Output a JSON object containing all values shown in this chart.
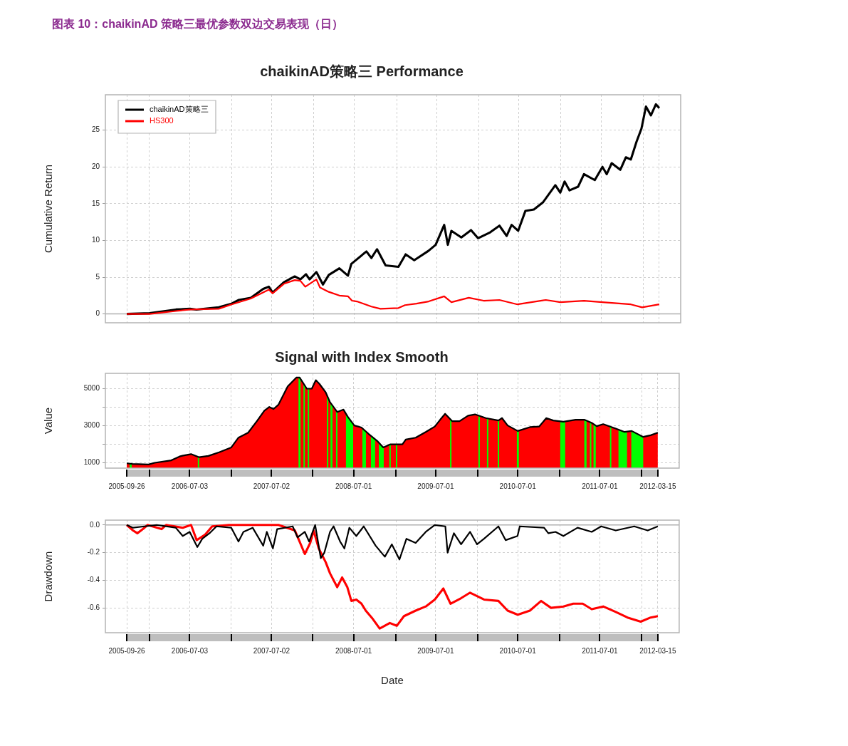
{
  "chart_data": [
    {
      "type": "line",
      "title": "chaikinAD策略三 Performance",
      "ylabel": "Cumulative Return",
      "annotations": [
        "图表 10：chaikinAD 策略三最优参数双边交易表现（日）"
      ],
      "series": [
        {
          "name": "chaikinAD策略三",
          "color": "#000000",
          "x": [
            "2005-09-26",
            "2006-01-05",
            "2006-05-02",
            "2006-07-03",
            "2006-08-01",
            "2006-11-08",
            "2007-01-04",
            "2007-02-05",
            "2007-03-30",
            "2007-05-24",
            "2007-06-18",
            "2007-07-05",
            "2007-08-24",
            "2007-10-11",
            "2007-11-05",
            "2007-11-30",
            "2007-12-16",
            "2008-01-15",
            "2008-02-13",
            "2008-03-10",
            "2008-04-26",
            "2008-06-03",
            "2008-06-18",
            "2008-08-24",
            "2008-09-15",
            "2008-10-10",
            "2008-11-17",
            "2009-01-13",
            "2009-02-14",
            "2009-03-24",
            "2009-05-27",
            "2009-06-27",
            "2009-08-04",
            "2009-08-20",
            "2009-09-05",
            "2009-10-19",
            "2009-12-01",
            "2010-01-01",
            "2010-02-24",
            "2010-04-06",
            "2010-05-08",
            "2010-05-30",
            "2010-06-28",
            "2010-07-30",
            "2010-09-06",
            "2010-10-17",
            "2010-12-10",
            "2011-01-01",
            "2011-01-20",
            "2011-02-11",
            "2011-03-21",
            "2011-04-16",
            "2011-06-03",
            "2011-07-07",
            "2011-07-26",
            "2011-08-17",
            "2011-09-24",
            "2011-10-19",
            "2011-11-10",
            "2011-12-05",
            "2011-12-27",
            "2012-01-16",
            "2012-02-07",
            "2012-02-29",
            "2012-03-15"
          ],
          "values": [
            0,
            0.1,
            0.6,
            0.7,
            0.6,
            0.9,
            1.4,
            1.9,
            2.2,
            3.4,
            3.7,
            2.9,
            4.3,
            5.1,
            4.7,
            5.4,
            4.7,
            5.7,
            4.0,
            5.3,
            6.2,
            5.2,
            6.8,
            8.5,
            7.6,
            8.8,
            6.6,
            6.4,
            8.1,
            7.3,
            8.6,
            9.4,
            12.1,
            9.4,
            11.3,
            10.4,
            11.4,
            10.3,
            11.1,
            12.0,
            10.6,
            12.1,
            11.3,
            14.0,
            14.2,
            15.2,
            17.5,
            16.5,
            18.0,
            16.8,
            17.3,
            19.0,
            18.2,
            20.0,
            19.0,
            20.5,
            19.6,
            21.3,
            21.0,
            23.4,
            25.2,
            28.2,
            27.0,
            28.5,
            28.0
          ]
        },
        {
          "name": "HS300",
          "color": "#ff0000",
          "x": [
            "2005-09-26",
            "2006-01-05",
            "2006-05-02",
            "2006-07-03",
            "2006-11-08",
            "2007-01-04",
            "2007-03-30",
            "2007-06-18",
            "2007-07-05",
            "2007-08-24",
            "2007-10-11",
            "2007-11-05",
            "2007-11-27",
            "2008-01-15",
            "2008-01-31",
            "2008-03-10",
            "2008-04-26",
            "2008-06-03",
            "2008-06-21",
            "2008-07-13",
            "2008-09-15",
            "2008-10-25",
            "2009-01-13",
            "2009-02-11",
            "2009-04-03",
            "2009-05-27",
            "2009-08-04",
            "2009-09-05",
            "2009-11-21",
            "2010-01-26",
            "2010-04-06",
            "2010-06-25",
            "2010-10-29",
            "2011-01-01",
            "2011-04-16",
            "2011-07-07",
            "2011-11-10",
            "2011-12-30",
            "2012-03-15"
          ],
          "values": [
            0,
            0.0,
            0.4,
            0.6,
            0.7,
            1.3,
            2.1,
            3.3,
            2.8,
            4.1,
            4.6,
            4.5,
            3.7,
            4.7,
            3.6,
            3.0,
            2.5,
            2.4,
            1.8,
            1.7,
            1.0,
            0.7,
            0.8,
            1.2,
            1.4,
            1.7,
            2.4,
            1.6,
            2.2,
            1.8,
            1.9,
            1.3,
            1.9,
            1.6,
            1.8,
            1.6,
            1.3,
            0.9,
            1.3
          ]
        }
      ],
      "xlim": [
        "2005-06-23",
        "2012-06-18"
      ],
      "xticks": [
        {
          "value": "2005-09-26",
          "label": null
        },
        {
          "value": "2006-01-04",
          "label": null
        },
        {
          "value": "2006-07-03",
          "label": null
        },
        {
          "value": "2007-01-04",
          "label": null
        },
        {
          "value": "2007-07-02",
          "label": null
        },
        {
          "value": "2008-01-02",
          "label": null
        },
        {
          "value": "2008-07-01",
          "label": null
        },
        {
          "value": "2009-01-05",
          "label": null
        },
        {
          "value": "2009-07-01",
          "label": null
        },
        {
          "value": "2010-01-04",
          "label": null
        },
        {
          "value": "2010-07-01",
          "label": null
        },
        {
          "value": "2011-01-04",
          "label": null
        },
        {
          "value": "2011-07-01",
          "label": null
        },
        {
          "value": "2012-01-04",
          "label": null
        },
        {
          "value": "2012-03-15",
          "label": null
        }
      ],
      "ylim": [
        -1.2,
        29.8
      ],
      "yticks": [
        0,
        5,
        10,
        15,
        20,
        25
      ],
      "ref_lines": [
        {
          "axis": "y",
          "value": 0,
          "color": "#b0b0b0"
        }
      ],
      "grid": true,
      "legend": "top left",
      "tick_labels": "y"
    },
    {
      "type": "line",
      "title": "Signal with Index Smooth",
      "ylabel": "Value",
      "x": [
        "2005-09-26",
        "2005-10-21",
        "2006-01-01",
        "2006-01-28",
        "2006-04-12",
        "2006-05-19",
        "2006-06-04",
        "2006-07-09",
        "2006-08-14",
        "2006-09-24",
        "2006-11-11",
        "2007-01-04",
        "2007-02-05",
        "2007-03-20",
        "2007-04-30",
        "2007-05-31",
        "2007-06-22",
        "2007-07-11",
        "2007-08-02",
        "2007-09-12",
        "2007-10-20",
        "2007-11-04",
        "2007-12-06",
        "2007-12-28",
        "2008-01-15",
        "2008-01-31",
        "2008-02-28",
        "2008-03-18",
        "2008-04-19",
        "2008-05-17",
        "2008-06-05",
        "2008-07-04",
        "2008-08-05",
        "2008-09-06",
        "2008-10-16",
        "2008-11-10",
        "2008-12-12",
        "2009-02-03",
        "2009-02-18",
        "2009-04-03",
        "2009-05-18",
        "2009-06-27",
        "2009-07-21",
        "2009-08-12",
        "2009-09-13",
        "2009-10-15",
        "2009-11-22",
        "2009-12-23",
        "2010-02-09",
        "2010-04-06",
        "2010-04-22",
        "2010-05-17",
        "2010-07-01",
        "2010-08-24",
        "2010-10-04",
        "2010-11-05",
        "2010-12-06",
        "2011-01-20",
        "2011-03-15",
        "2011-04-23",
        "2011-05-26",
        "2011-06-17",
        "2011-07-16",
        "2011-09-10",
        "2011-10-19",
        "2011-11-20",
        "2012-01-10",
        "2012-02-12",
        "2012-03-15"
      ],
      "series": [
        {
          "color": "#000000",
          "values": [
            960,
            930,
            900,
            990,
            1120,
            1330,
            1380,
            1460,
            1290,
            1360,
            1560,
            1820,
            2350,
            2620,
            3280,
            3810,
            4010,
            3900,
            4140,
            5130,
            5600,
            5600,
            5000,
            5000,
            5460,
            5260,
            4800,
            4270,
            3740,
            3870,
            3480,
            3010,
            2900,
            2550,
            2150,
            1820,
            1990,
            1990,
            2250,
            2350,
            2660,
            2950,
            3320,
            3640,
            3240,
            3240,
            3540,
            3610,
            3410,
            3280,
            3410,
            3010,
            2710,
            2920,
            2950,
            3410,
            3280,
            3210,
            3320,
            3320,
            3150,
            2970,
            3080,
            2840,
            2660,
            2710,
            2390,
            2480,
            2620
          ]
        }
      ],
      "bands": [
        {
          "axis": "x",
          "from": "2005-09-26",
          "to": "2012-03-15",
          "color": "#ff0000"
        },
        {
          "axis": "x",
          "from": "2005-10-09",
          "to": "2005-10-18",
          "color": "#00ff00"
        },
        {
          "axis": "x",
          "from": "2006-08-08",
          "to": "2006-08-14",
          "color": "#00ff00"
        },
        {
          "axis": "x",
          "from": "2007-10-30",
          "to": "2007-11-08",
          "color": "#00ff00"
        },
        {
          "axis": "x",
          "from": "2007-11-21",
          "to": "2007-11-24",
          "color": "#00ff00"
        },
        {
          "axis": "x",
          "from": "2007-12-10",
          "to": "2007-12-13",
          "color": "#00ff00"
        },
        {
          "axis": "x",
          "from": "2008-03-04",
          "to": "2008-03-07",
          "color": "#00ff00"
        },
        {
          "axis": "x",
          "from": "2008-03-20",
          "to": "2008-03-29",
          "color": "#00ff00"
        },
        {
          "axis": "x",
          "from": "2008-04-14",
          "to": "2008-04-17",
          "color": "#00ff00"
        },
        {
          "axis": "x",
          "from": "2008-05-28",
          "to": "2008-06-29",
          "color": "#00ff00"
        },
        {
          "axis": "x",
          "from": "2008-08-09",
          "to": "2008-08-25",
          "color": "#00ff00"
        },
        {
          "axis": "x",
          "from": "2008-09-16",
          "to": "2008-10-05",
          "color": "#00ff00"
        },
        {
          "axis": "x",
          "from": "2008-10-21",
          "to": "2008-11-12",
          "color": "#00ff00"
        },
        {
          "axis": "x",
          "from": "2008-12-07",
          "to": "2008-12-10",
          "color": "#00ff00"
        },
        {
          "axis": "x",
          "from": "2009-01-05",
          "to": "2009-01-08",
          "color": "#00ff00"
        },
        {
          "axis": "x",
          "from": "2009-09-03",
          "to": "2009-09-06",
          "color": "#00ff00"
        },
        {
          "axis": "x",
          "from": "2010-01-07",
          "to": "2010-01-10",
          "color": "#00ff00"
        },
        {
          "axis": "x",
          "from": "2010-02-14",
          "to": "2010-02-17",
          "color": "#00ff00"
        },
        {
          "axis": "x",
          "from": "2010-04-03",
          "to": "2010-04-06",
          "color": "#00ff00"
        },
        {
          "axis": "x",
          "from": "2010-06-27",
          "to": "2010-07-06",
          "color": "#00ff00"
        },
        {
          "axis": "x",
          "from": "2011-01-06",
          "to": "2011-01-28",
          "color": "#00ff00"
        },
        {
          "axis": "x",
          "from": "2011-04-23",
          "to": "2011-05-03",
          "color": "#00ff00"
        },
        {
          "axis": "x",
          "from": "2011-05-18",
          "to": "2011-05-21",
          "color": "#00ff00"
        },
        {
          "axis": "x",
          "from": "2011-06-03",
          "to": "2011-06-13",
          "color": "#00ff00"
        },
        {
          "axis": "x",
          "from": "2011-08-15",
          "to": "2011-08-18",
          "color": "#00ff00"
        },
        {
          "axis": "x",
          "from": "2011-09-22",
          "to": "2011-10-30",
          "color": "#00ff00"
        },
        {
          "axis": "x",
          "from": "2011-11-18",
          "to": "2012-01-10",
          "color": "#00ff00"
        }
      ],
      "xlim": [
        "2005-06-23",
        "2012-06-18"
      ],
      "xticks": [
        "2005-09-26",
        {
          "value": "2006-01-04",
          "label": null
        },
        "2006-07-03",
        {
          "value": "2007-01-04",
          "label": null
        },
        "2007-07-02",
        {
          "value": "2008-01-02",
          "label": null
        },
        "2008-07-01",
        {
          "value": "2009-01-05",
          "label": null
        },
        "2009-07-01",
        {
          "value": "2010-01-04",
          "label": null
        },
        "2010-07-01",
        {
          "value": "2011-01-04",
          "label": null
        },
        "2011-07-01",
        {
          "value": "2012-01-04",
          "label": null
        },
        "2012-03-15"
      ],
      "ylim": [
        700,
        5830
      ],
      "yticks": [
        1000,
        {
          "value": 2000,
          "label": null
        },
        3000,
        {
          "value": 4000,
          "label": null
        },
        5000
      ],
      "grid": true
    },
    {
      "type": "line",
      "ylabel": "Drawdown",
      "xlabel": "Date",
      "series": [
        {
          "color": "#ff0000",
          "x": [
            "2005-09-26",
            "2005-10-24",
            "2005-11-12",
            "2005-12-14",
            "2005-12-28",
            "2006-02-28",
            "2006-03-20",
            "2006-06-02",
            "2006-07-09",
            "2006-08-03",
            "2006-09-10",
            "2006-10-11",
            "2006-12-24",
            "2007-07-02",
            "2007-08-02",
            "2007-10-14",
            "2007-11-27",
            "2007-12-21",
            "2008-01-05",
            "2008-01-28",
            "2008-02-28",
            "2008-03-18",
            "2008-04-19",
            "2008-05-11",
            "2008-06-03",
            "2008-06-21",
            "2008-07-13",
            "2008-08-05",
            "2008-08-24",
            "2008-09-24",
            "2008-10-25",
            "2008-12-09",
            "2009-01-09",
            "2009-02-10",
            "2009-04-03",
            "2009-05-18",
            "2009-06-27",
            "2009-08-04",
            "2009-09-05",
            "2009-10-22",
            "2009-12-01",
            "2010-02-01",
            "2010-04-06",
            "2010-05-17",
            "2010-07-01",
            "2010-08-24",
            "2010-10-13",
            "2010-11-26",
            "2011-01-20",
            "2011-03-05",
            "2011-04-16",
            "2011-05-26",
            "2011-07-16",
            "2011-09-10",
            "2011-11-01",
            "2011-12-30",
            "2012-02-12",
            "2012-03-15"
          ],
          "values": [
            0,
            -0.04,
            -0.06,
            -0.02,
            0,
            -0.03,
            0,
            -0.02,
            0,
            -0.11,
            -0.07,
            -0.01,
            0,
            0,
            0,
            -0.04,
            -0.21,
            -0.13,
            -0.04,
            -0.17,
            -0.27,
            -0.35,
            -0.45,
            -0.38,
            -0.45,
            -0.55,
            -0.54,
            -0.57,
            -0.62,
            -0.68,
            -0.75,
            -0.71,
            -0.73,
            -0.66,
            -0.62,
            -0.59,
            -0.54,
            -0.46,
            -0.57,
            -0.53,
            -0.49,
            -0.54,
            -0.55,
            -0.62,
            -0.65,
            -0.62,
            -0.55,
            -0.6,
            -0.59,
            -0.57,
            -0.57,
            -0.61,
            -0.59,
            -0.63,
            -0.67,
            -0.7,
            -0.67,
            -0.66
          ]
        },
        {
          "color": "#000000",
          "x": [
            "2005-09-26",
            "2005-10-24",
            "2005-12-14",
            "2006-02-06",
            "2006-05-02",
            "2006-06-02",
            "2006-07-03",
            "2006-08-06",
            "2006-08-28",
            "2006-09-29",
            "2006-10-30",
            "2007-01-04",
            "2007-02-05",
            "2007-02-27",
            "2007-04-09",
            "2007-05-26",
            "2007-06-11",
            "2007-07-08",
            "2007-07-27",
            "2007-10-04",
            "2007-10-26",
            "2007-11-27",
            "2007-12-16",
            "2008-01-12",
            "2008-02-06",
            "2008-02-22",
            "2008-03-18",
            "2008-04-03",
            "2008-05-02",
            "2008-05-21",
            "2008-06-12",
            "2008-07-13",
            "2008-08-15",
            "2008-10-07",
            "2008-11-17",
            "2008-12-18",
            "2009-01-21",
            "2009-02-21",
            "2009-04-03",
            "2009-05-18",
            "2009-06-27",
            "2009-08-13",
            "2009-08-23",
            "2009-09-20",
            "2009-10-22",
            "2009-12-01",
            "2010-01-01",
            "2010-02-01",
            "2010-04-06",
            "2010-05-08",
            "2010-06-30",
            "2010-07-10",
            "2010-10-26",
            "2010-11-14",
            "2010-12-16",
            "2011-01-20",
            "2011-03-24",
            "2011-05-26",
            "2011-07-07",
            "2011-09-10",
            "2011-12-01",
            "2012-01-30",
            "2012-03-15"
          ],
          "values": [
            0,
            -0.02,
            -0.01,
            0,
            -0.02,
            -0.08,
            -0.05,
            -0.16,
            -0.1,
            -0.06,
            -0.01,
            -0.02,
            -0.12,
            -0.05,
            -0.02,
            -0.15,
            -0.05,
            -0.17,
            -0.03,
            -0.01,
            -0.09,
            -0.05,
            -0.12,
            0,
            -0.24,
            -0.2,
            -0.05,
            -0.01,
            -0.12,
            -0.17,
            -0.02,
            -0.08,
            -0.01,
            -0.15,
            -0.23,
            -0.14,
            -0.25,
            -0.1,
            -0.13,
            -0.05,
            0,
            -0.01,
            -0.2,
            -0.06,
            -0.14,
            -0.05,
            -0.14,
            -0.1,
            -0.01,
            -0.11,
            -0.08,
            -0.01,
            -0.02,
            -0.06,
            -0.05,
            -0.08,
            -0.02,
            -0.05,
            -0.01,
            -0.04,
            -0.01,
            -0.04,
            -0.01
          ]
        }
      ],
      "xlim": [
        "2005-06-23",
        "2012-06-18"
      ],
      "xticks": [
        "2005-09-26",
        {
          "value": "2006-01-04",
          "label": null
        },
        "2006-07-03",
        {
          "value": "2007-01-04",
          "label": null
        },
        "2007-07-02",
        {
          "value": "2008-01-02",
          "label": null
        },
        "2008-07-01",
        {
          "value": "2009-01-05",
          "label": null
        },
        "2009-07-01",
        {
          "value": "2010-01-04",
          "label": null
        },
        "2010-07-01",
        {
          "value": "2011-01-04",
          "label": null
        },
        "2011-07-01",
        {
          "value": "2012-01-04",
          "label": null
        },
        "2012-03-15"
      ],
      "ylim": [
        -0.78,
        0.035
      ],
      "yticks": [
        {
          "value": 0,
          "label": "0.0"
        },
        {
          "value": -0.2,
          "label": "-0.2"
        },
        {
          "value": -0.4,
          "label": "-0.4"
        },
        {
          "value": -0.6,
          "label": "-0.6"
        }
      ],
      "ref_lines": [
        {
          "axis": "y",
          "value": 0,
          "color": "#b0b0b0"
        }
      ],
      "grid": true
    }
  ]
}
